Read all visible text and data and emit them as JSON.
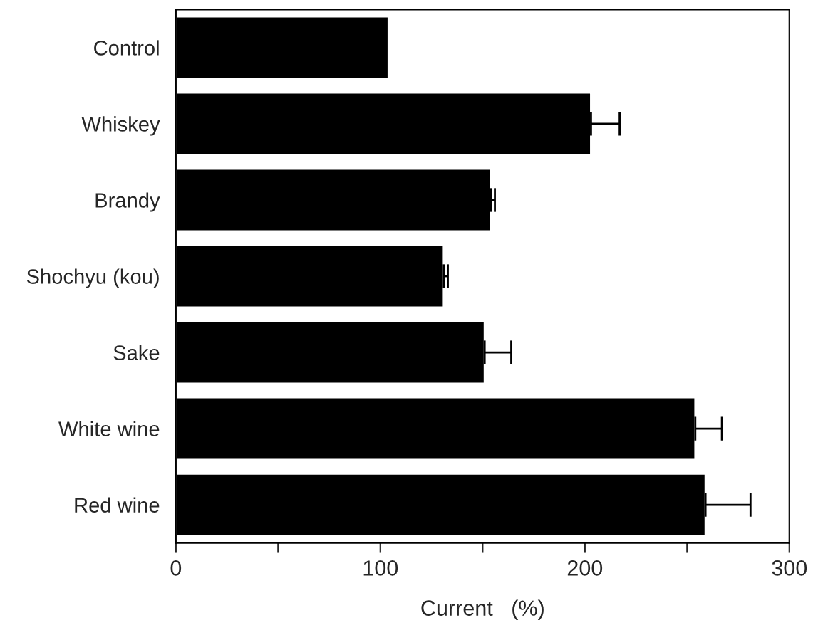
{
  "chart_data": {
    "type": "bar",
    "orientation": "horizontal",
    "categories": [
      "Control",
      "Whiskey",
      "Brandy",
      "Shochyu (kou)",
      "Sake",
      "White wine",
      "Red wine"
    ],
    "values": [
      104,
      203,
      154,
      131,
      151,
      254,
      259
    ],
    "errors": [
      null,
      [
        203,
        217
      ],
      [
        154,
        156
      ],
      [
        131,
        133
      ],
      [
        151,
        164
      ],
      [
        254,
        267
      ],
      [
        259,
        281
      ]
    ],
    "color": "#000000",
    "xlabel": "Current   (%)",
    "xlim": [
      0,
      300
    ],
    "xticks": [
      0,
      {
        "value": 50,
        "label": null
      },
      100,
      {
        "value": 150,
        "label": null
      },
      200,
      {
        "value": 250,
        "label": null
      },
      300
    ],
    "grid": false,
    "legend": false
  }
}
